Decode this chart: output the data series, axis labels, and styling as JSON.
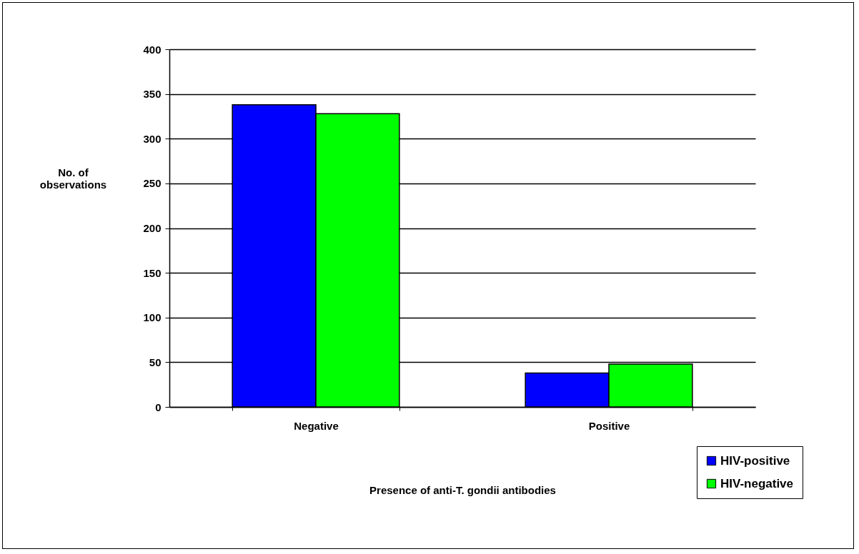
{
  "chart_data": {
    "type": "bar",
    "xlabel": "Presence of anti-T. gondii antibodies",
    "ylabel": "No. of\nobservations",
    "categories": [
      "Negative",
      "Positive"
    ],
    "series": [
      {
        "name": "HIV-positive",
        "color": "#0000ff",
        "values": [
          338,
          38
        ]
      },
      {
        "name": "HIV-negative",
        "color": "#00ff00",
        "values": [
          328,
          48
        ]
      }
    ],
    "ylim": [
      0,
      400
    ],
    "yticks": [
      0,
      50,
      100,
      150,
      200,
      250,
      300,
      350,
      400
    ],
    "grid": "y",
    "legend": "bottom right"
  }
}
